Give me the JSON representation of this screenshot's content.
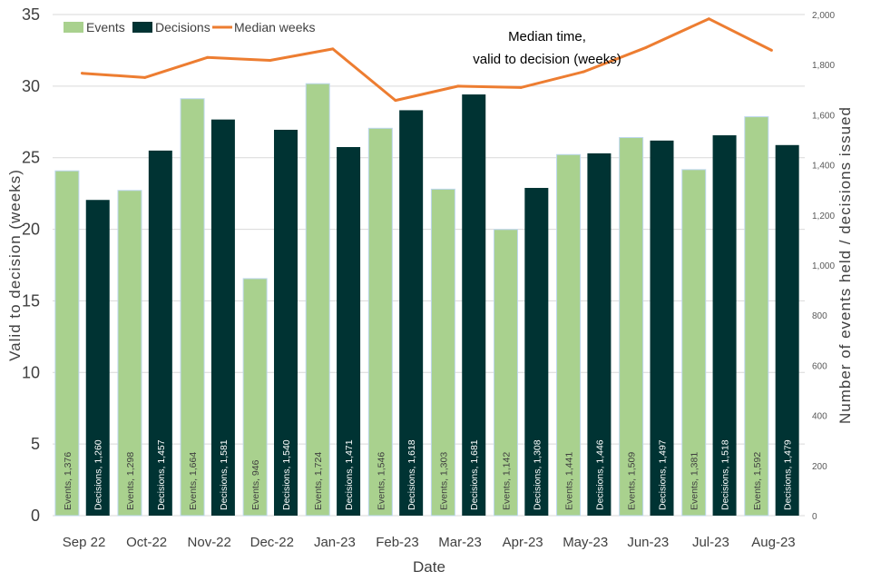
{
  "chart_data": {
    "type": "bar",
    "title": "",
    "xlabel": "Date",
    "ylabel": "Valid to decision (weeks)",
    "y2label": "Number of events held / decisions issued",
    "ylim": [
      0,
      35
    ],
    "y2lim": [
      0,
      2000
    ],
    "yticks": [
      0,
      5,
      10,
      15,
      20,
      25,
      30,
      35
    ],
    "y2ticks": [
      "0",
      "200",
      "400",
      "600",
      "800",
      "1,000",
      "1,200",
      "1,400",
      "1,600",
      "1,800",
      "2,000"
    ],
    "categories": [
      "Sep 22",
      "Oct-22",
      "Nov-22",
      "Dec-22",
      "Jan-23",
      "Feb-23",
      "Mar-23",
      "Apr-23",
      "May-23",
      "Jun-23",
      "Jul-23",
      "Aug-23"
    ],
    "series": [
      {
        "name": "Events",
        "axis": "right",
        "color": "#a9d18e",
        "values": [
          1376,
          1298,
          1664,
          946,
          1724,
          1546,
          1303,
          1142,
          1441,
          1509,
          1381,
          1592
        ],
        "labels": [
          "Events, 1,376",
          "Events, 1,298",
          "Events, 1,664",
          "Events, 946",
          "Events, 1,724",
          "Events, 1,546",
          "Events, 1,303",
          "Events, 1,142",
          "Events, 1,441",
          "Events, 1,509",
          "Events, 1,381",
          "Events, 1,592"
        ]
      },
      {
        "name": "Decisions",
        "axis": "right",
        "color": "#003333",
        "values": [
          1260,
          1457,
          1581,
          1540,
          1471,
          1618,
          1681,
          1308,
          1446,
          1497,
          1518,
          1479
        ],
        "labels": [
          "Decisions, 1,260",
          "Decisions, 1,457",
          "Decisions, 1,581",
          "Decisions, 1,540",
          "Decisions, 1,471",
          "Decisions, 1,618",
          "Decisions, 1,681",
          "Decisions, 1,308",
          "Decisions, 1,446",
          "Decisions, 1,497",
          "Decisions, 1,518",
          "Decisions, 1,479"
        ]
      },
      {
        "name": "Median weeks",
        "axis": "left",
        "type": "line",
        "color": "#ed7d31",
        "values": [
          30.9,
          30.6,
          32.0,
          31.8,
          32.6,
          29.0,
          30.0,
          29.9,
          31.0,
          32.7,
          34.7,
          32.5
        ]
      }
    ],
    "legend": [
      "Events",
      "Decisions",
      "Median weeks"
    ],
    "legend_position": "top-left",
    "annotation": [
      "Median time,",
      "valid to decision (weeks)"
    ],
    "grid": true
  }
}
